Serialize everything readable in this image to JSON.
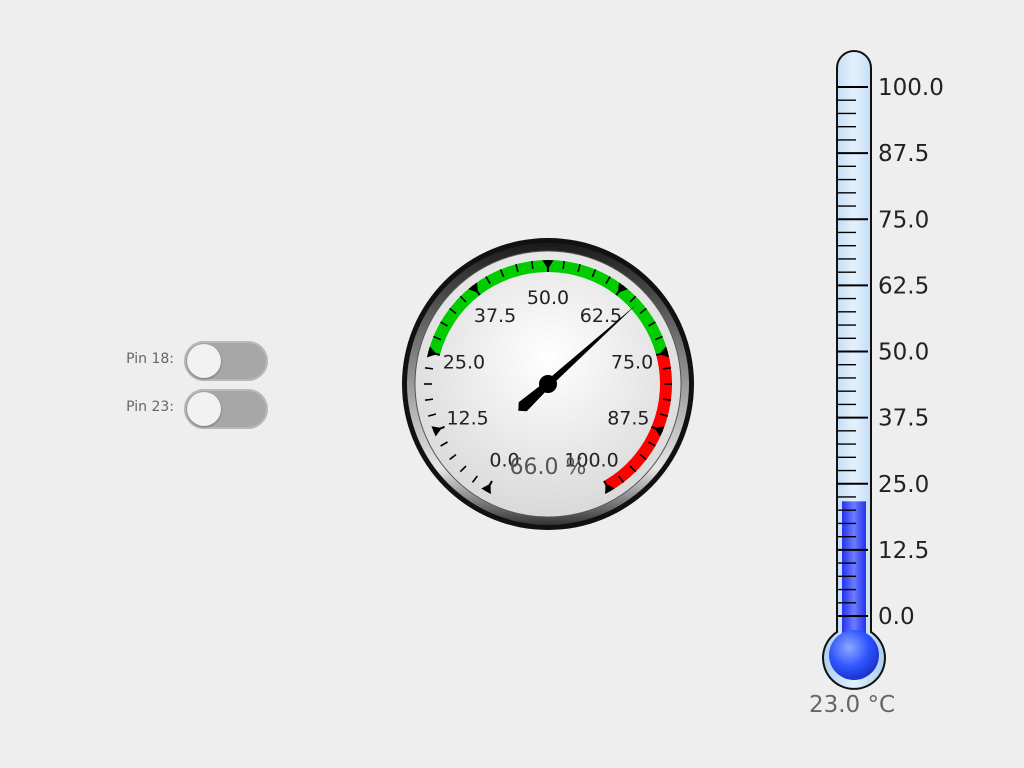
{
  "toggles": [
    {
      "label": "Pin 18:",
      "checked": false
    },
    {
      "label": "Pin 23:",
      "checked": false
    }
  ],
  "gauge": {
    "min": 0,
    "max": 100,
    "value": 66.0,
    "value_text": "66.0 %",
    "major_labels": [
      "0.0",
      "12.5",
      "25.0",
      "37.5",
      "50.0",
      "62.5",
      "75.0",
      "87.5",
      "100.0"
    ],
    "zones": [
      {
        "from": 25,
        "to": 75,
        "color": "#00cc00"
      },
      {
        "from": 75,
        "to": 100,
        "color": "#ff0000"
      }
    ]
  },
  "thermometer": {
    "min": 0,
    "max": 100,
    "value": 23.0,
    "value_text": "23.0 °C",
    "major_labels": [
      "0.0",
      "12.5",
      "25.0",
      "37.5",
      "50.0",
      "62.5",
      "75.0",
      "87.5",
      "100.0"
    ]
  },
  "colors": {
    "background": "#eeeeee",
    "gauge_green": "#00cc00",
    "gauge_red": "#ff0000",
    "mercury": "#3344ff",
    "tube": "#cfe6fb"
  }
}
